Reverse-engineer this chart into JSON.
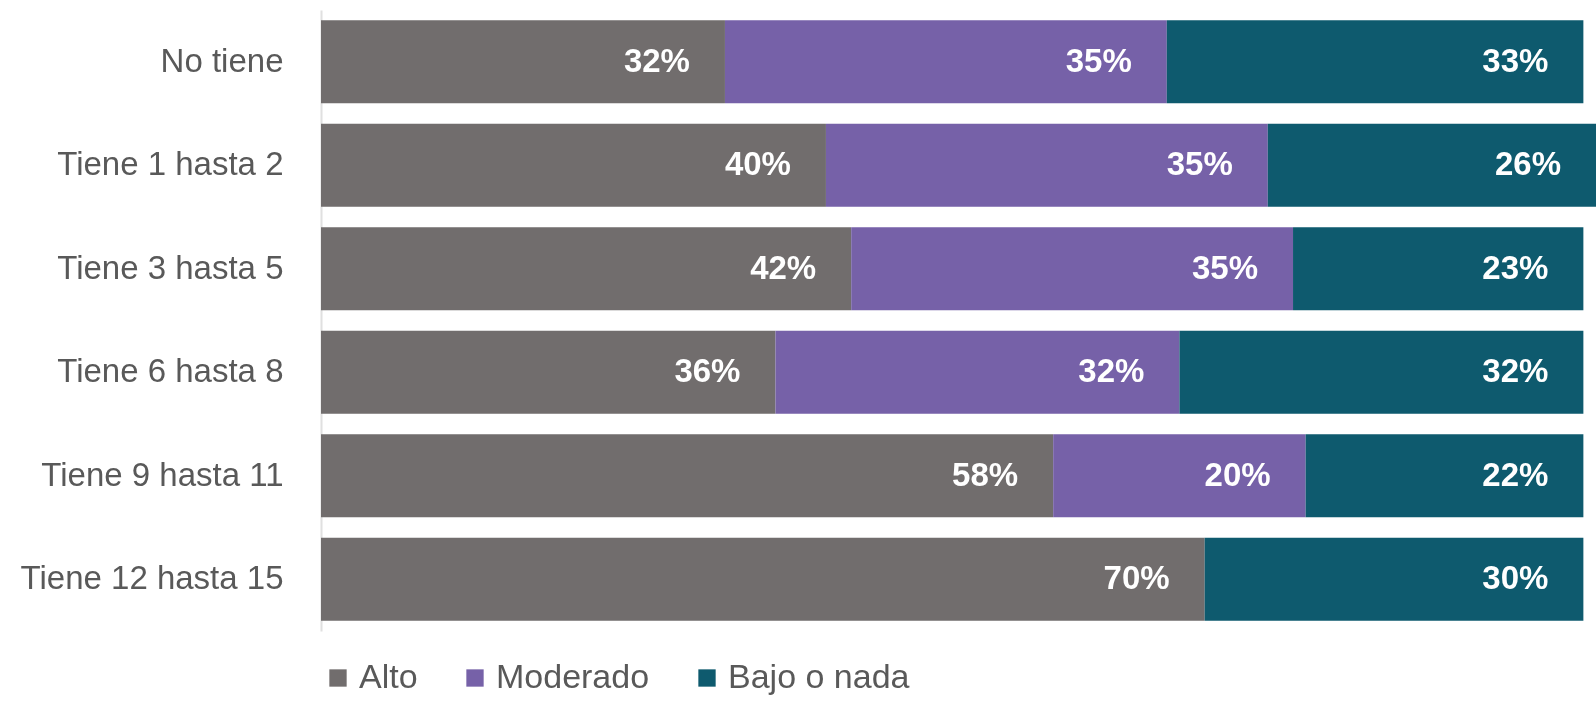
{
  "chart_data": {
    "type": "bar",
    "orientation": "horizontal",
    "stacked": true,
    "legend": "bottom",
    "grid": false,
    "categories": [
      "No tiene",
      "Tiene 1 hasta 2",
      "Tiene 3 hasta 5",
      "Tiene 6 hasta 8",
      "Tiene 9 hasta 11",
      "Tiene 12 hasta 15"
    ],
    "series": [
      {
        "name": "Alto",
        "color": "#716d6d",
        "values": [
          32,
          40,
          42,
          36,
          58,
          70
        ],
        "value_labels": [
          "32%",
          "40%",
          "42%",
          "36%",
          "58%",
          "70%"
        ]
      },
      {
        "name": "Moderado",
        "color": "#7661a8",
        "values": [
          35,
          35,
          35,
          32,
          20,
          null
        ],
        "value_labels": [
          "35%",
          "35%",
          "35%",
          "32%",
          "20%",
          null
        ]
      },
      {
        "name": "Bajo o nada",
        "color": "#0e5a6e",
        "values": [
          33,
          26,
          23,
          32,
          22,
          30
        ],
        "value_labels": [
          "33%",
          "26%",
          "23%",
          "32%",
          "22%",
          "30%"
        ]
      }
    ]
  }
}
